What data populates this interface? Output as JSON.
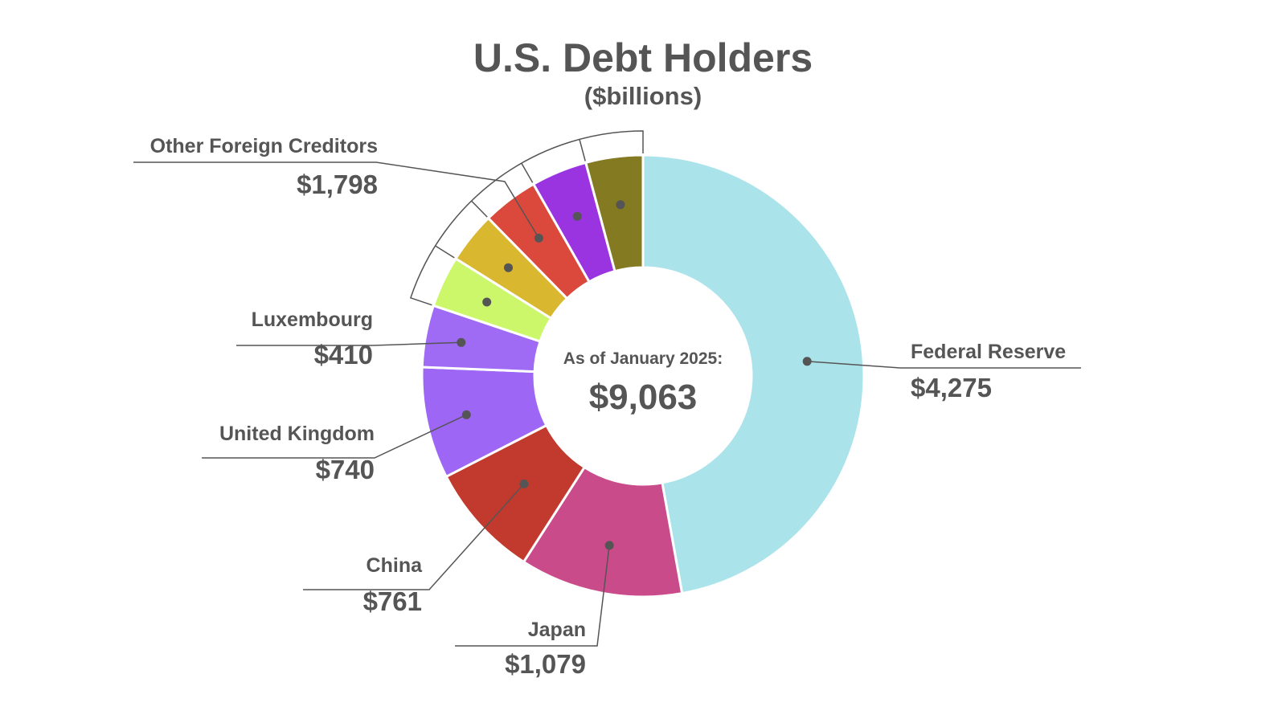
{
  "header": {
    "title": "U.S. Debt Holders",
    "subtitle": "($billions)"
  },
  "center": {
    "caption": "As of January 2025:",
    "total": "$9,063"
  },
  "chart_data": {
    "type": "pie",
    "title": "U.S. Debt Holders",
    "subtitle": "($billions)",
    "total": 9063,
    "slices": [
      {
        "name": "Federal Reserve",
        "value": 4275,
        "label": "$4,275",
        "color": "#ABE3EA"
      },
      {
        "name": "Japan",
        "value": 1079,
        "label": "$1,079",
        "color": "#C94B8A"
      },
      {
        "name": "China",
        "value": 761,
        "label": "$761",
        "color": "#C2392D"
      },
      {
        "name": "United Kingdom",
        "value": 740,
        "label": "$740",
        "color": "#9D66F5"
      },
      {
        "name": "Luxembourg",
        "value": 410,
        "label": "$410",
        "color": "#9F6AF4"
      },
      {
        "name": "",
        "value": 340,
        "color": "#CCF76A",
        "group": "Other Foreign Creditors"
      },
      {
        "name": "",
        "value": 340,
        "color": "#D9B72E",
        "group": "Other Foreign Creditors"
      },
      {
        "name": "",
        "value": 370,
        "color": "#DB493C",
        "group": "Other Foreign Creditors"
      },
      {
        "name": "",
        "value": 370,
        "color": "#9A34E0",
        "group": "Other Foreign Creditors"
      },
      {
        "name": "",
        "value": 378,
        "color": "#847A22",
        "group": "Other Foreign Creditors"
      }
    ],
    "groups": [
      {
        "name": "Other Foreign Creditors",
        "value": 1798,
        "label": "$1,798"
      }
    ],
    "legend": "none"
  }
}
